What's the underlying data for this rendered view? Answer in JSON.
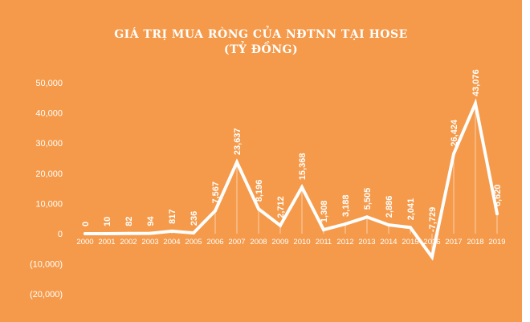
{
  "colors": {
    "background": "#F59A4A",
    "line": "#FFFFFF",
    "text": "#FFFFFF"
  },
  "chart_data": {
    "type": "line",
    "title": "GIÁ TRỊ MUA RÒNG CỦA NĐTNN TẠI HOSE",
    "subtitle": "(TỶ ĐỒNG)",
    "categories": [
      "2000",
      "2001",
      "2002",
      "2003",
      "2004",
      "2005",
      "2006",
      "2007",
      "2008",
      "2009",
      "2010",
      "2011",
      "2012",
      "2013",
      "2014",
      "2015",
      "2016",
      "2017",
      "2018",
      "2019"
    ],
    "series": [
      {
        "values": [
          0,
          10,
          82,
          94,
          817,
          236,
          7567,
          23637,
          8196,
          2712,
          15368,
          1308,
          3188,
          5505,
          2886,
          2041,
          -7729,
          26424,
          43076,
          6620
        ]
      }
    ],
    "data_labels": [
      "0",
      "10",
      "82",
      "94",
      "817",
      "236",
      "7,567",
      "23,637",
      "8,196",
      "2,712",
      "15,368",
      "1,308",
      "3,188",
      "5,505",
      "2,886",
      "2,041",
      "-7,729",
      "26,424",
      "43,076",
      "6,620"
    ],
    "yticks": [
      "50,000",
      "40,000",
      "30,000",
      "20,000",
      "10,000",
      "0",
      "(10,000)",
      "(20,000)"
    ],
    "ytick_values": [
      50000,
      40000,
      30000,
      20000,
      10000,
      0,
      -10000,
      -20000
    ],
    "ylim": [
      -20000,
      50000
    ],
    "grid": false,
    "legend": "none"
  }
}
